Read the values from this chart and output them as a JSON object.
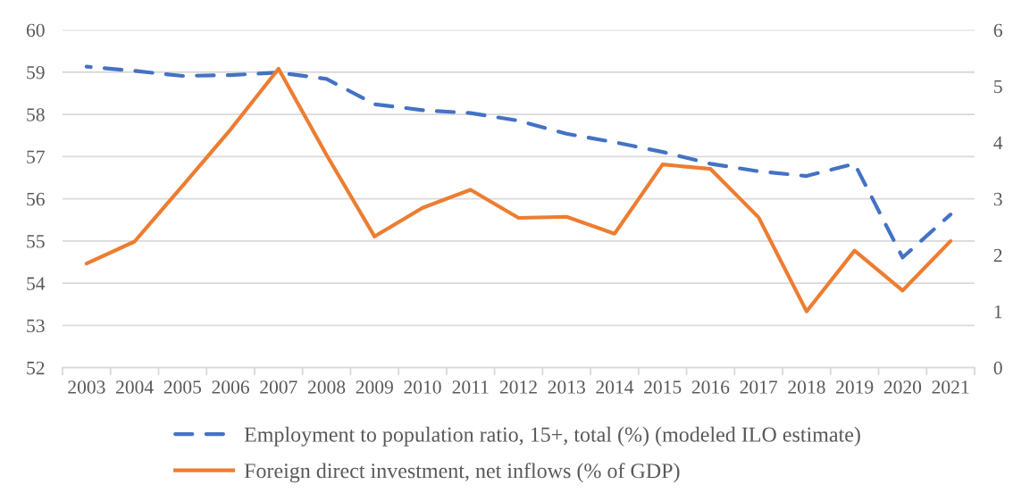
{
  "chart_data": {
    "type": "line",
    "categories": [
      "2003",
      "2004",
      "2005",
      "2006",
      "2007",
      "2008",
      "2009",
      "2010",
      "2011",
      "2012",
      "2013",
      "2014",
      "2015",
      "2016",
      "2017",
      "2018",
      "2019",
      "2020",
      "2021"
    ],
    "series": [
      {
        "name": "Employment to population ratio, 15+, total (%) (modeled ILO estimate)",
        "color": "#4472c4",
        "line_style": "dashed",
        "values": [
          59.13,
          59.03,
          58.91,
          58.93,
          58.99,
          58.84,
          58.24,
          58.1,
          58.03,
          57.85,
          57.54,
          57.34,
          57.11,
          56.83,
          56.65,
          56.54,
          56.83,
          54.61,
          55.63
        ]
      },
      {
        "name": "Foreign direct investment, net inflows (% of GDP)",
        "color": "#ed7d31",
        "line_style": "solid",
        "axis": "y2",
        "values": [
          1.85,
          2.24,
          3.23,
          4.23,
          5.31,
          3.78,
          2.33,
          2.84,
          3.16,
          2.66,
          2.68,
          2.38,
          3.61,
          3.53,
          2.67,
          1.0,
          2.08,
          1.37,
          2.25
        ]
      }
    ],
    "ylim": [
      52,
      60
    ],
    "yticks": [
      52,
      53,
      54,
      55,
      56,
      57,
      58,
      59,
      60
    ],
    "y2lim": [
      0,
      6
    ],
    "y2ticks": [
      0,
      1,
      2,
      3,
      4,
      5,
      6
    ],
    "grid": "y",
    "legend": "bottom"
  }
}
